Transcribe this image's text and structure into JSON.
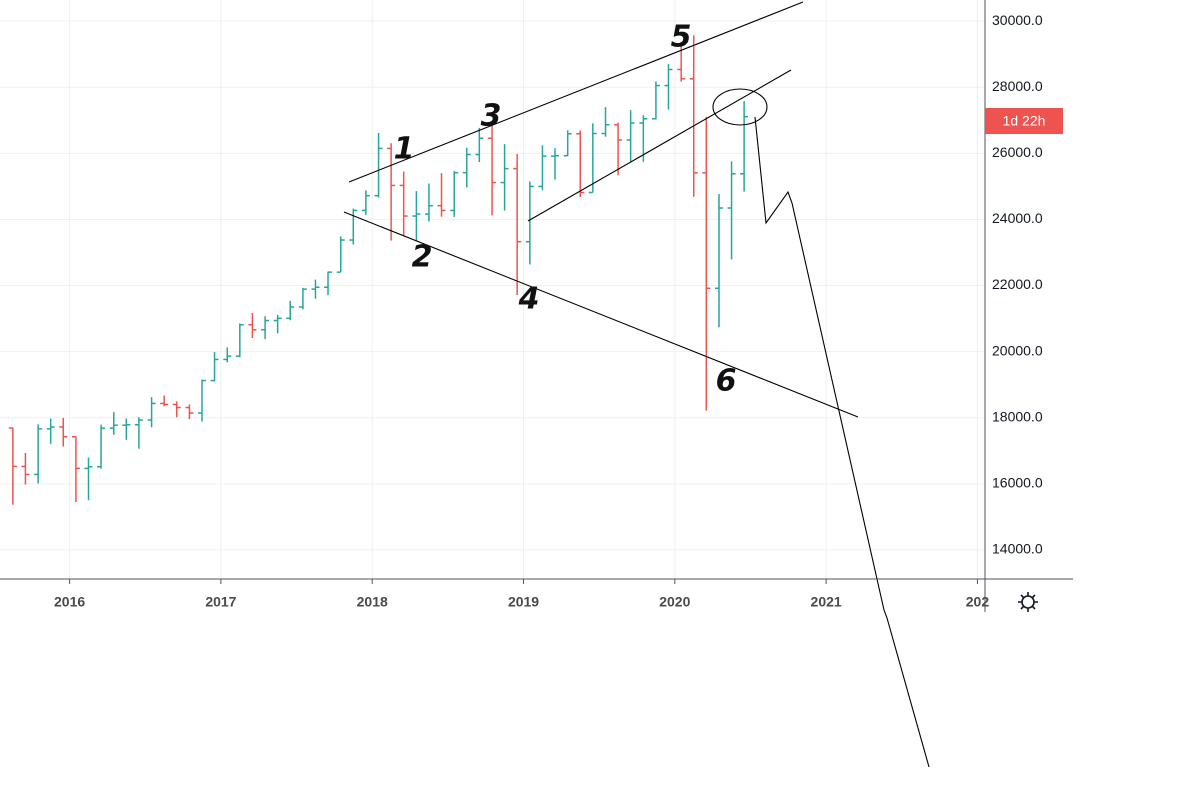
{
  "chart_data": {
    "type": "ohlc",
    "x": [
      2015.625,
      2015.708,
      2015.792,
      2015.875,
      2015.958,
      2016.042,
      2016.125,
      2016.208,
      2016.292,
      2016.375,
      2016.458,
      2016.542,
      2016.625,
      2016.708,
      2016.792,
      2016.875,
      2016.958,
      2017.042,
      2017.125,
      2017.208,
      2017.292,
      2017.375,
      2017.458,
      2017.542,
      2017.625,
      2017.708,
      2017.792,
      2017.875,
      2017.958,
      2018.042,
      2018.125,
      2018.208,
      2018.292,
      2018.375,
      2018.458,
      2018.542,
      2018.625,
      2018.708,
      2018.792,
      2018.875,
      2018.958,
      2019.042,
      2019.125,
      2019.208,
      2019.292,
      2019.375,
      2019.458,
      2019.542,
      2019.625,
      2019.708,
      2019.792,
      2019.875,
      2019.958,
      2020.042,
      2020.125,
      2020.208,
      2020.292,
      2020.375,
      2020.458
    ],
    "open": [
      17690,
      16528,
      16284,
      17663,
      17719,
      17425,
      16466,
      16517,
      17685,
      17774,
      17787,
      17930,
      18432,
      18401,
      18308,
      18142,
      19124,
      19763,
      19864,
      20812,
      20663,
      20941,
      21009,
      21350,
      21891,
      21948,
      22405,
      23377,
      24272,
      24719,
      26149,
      25029,
      24103,
      24163,
      24416,
      24271,
      25415,
      25965,
      26458,
      25116,
      25538,
      23327,
      24999,
      25916,
      25929,
      26593,
      24815,
      26600,
      26864,
      26403,
      26917,
      27046,
      28051,
      28538,
      28256,
      25409,
      21917,
      24346,
      25383
    ],
    "high": [
      17700,
      16933,
      17799,
      17977,
      17996,
      17425,
      16795,
      17790,
      18168,
      17974,
      18017,
      18622,
      18668,
      18495,
      18399,
      19152,
      19987,
      20125,
      20851,
      21169,
      21070,
      21113,
      21535,
      21929,
      22179,
      22420,
      23485,
      24328,
      24877,
      26617,
      26307,
      25450,
      24858,
      25087,
      25403,
      25463,
      26168,
      26770,
      26952,
      26278,
      25980,
      25150,
      26241,
      26156,
      26696,
      26689,
      26907,
      27399,
      26927,
      27306,
      27153,
      28175,
      28702,
      29374,
      29568,
      27102,
      24765,
      25758,
      27580
    ],
    "low": [
      15370,
      15979,
      16013,
      17210,
      17128,
      15450,
      15503,
      16459,
      17485,
      17331,
      17063,
      17711,
      18352,
      18017,
      17960,
      17884,
      19099,
      19678,
      19831,
      20412,
      20379,
      20553,
      20951,
      21279,
      21600,
      21710,
      22405,
      23242,
      24138,
      24660,
      23360,
      23509,
      23345,
      23939,
      24084,
      24077,
      24966,
      25737,
      24123,
      24268,
      21713,
      22638,
      24884,
      25208,
      25917,
      24680,
      24820,
      26503,
      25339,
      25743,
      25744,
      27026,
      27325,
      28170,
      24681,
      18214,
      20735,
      22790,
      24843
    ],
    "close": [
      16528,
      16284,
      17663,
      17719,
      17425,
      16466,
      16517,
      17685,
      17774,
      17787,
      17930,
      18432,
      18401,
      18308,
      18142,
      19124,
      19763,
      19864,
      20812,
      20663,
      20941,
      21009,
      21350,
      21891,
      21948,
      22405,
      23377,
      24272,
      24719,
      26149,
      25029,
      24103,
      24163,
      24416,
      24271,
      25415,
      25965,
      26458,
      25116,
      25538,
      23327,
      24999,
      25916,
      25929,
      26593,
      24815,
      26600,
      26864,
      26403,
      26917,
      27046,
      28051,
      28538,
      28256,
      25409,
      21917,
      24346,
      25383,
      27110
    ],
    "up_color": "#26a69a",
    "down_color": "#ef5350",
    "xlim": [
      2015.54,
      2022.05
    ],
    "xticks": [
      2016,
      2017,
      2018,
      2019,
      2020,
      2021,
      {
        "value": 2022,
        "label": "202"
      }
    ],
    "ylim": [
      13120,
      30640
    ],
    "yticks": [
      {
        "value": 14000,
        "label": "14000.0"
      },
      {
        "value": 16000,
        "label": "16000.0"
      },
      {
        "value": 18000,
        "label": "18000.0"
      },
      {
        "value": 20000,
        "label": "20000.0"
      },
      {
        "value": 22000,
        "label": "22000.0"
      },
      {
        "value": 24000,
        "label": "24000.0"
      },
      {
        "value": 26000,
        "label": "26000.0"
      },
      {
        "value": 28000,
        "label": "28000.0"
      },
      {
        "value": 30000,
        "label": "30000.0"
      }
    ],
    "grid": true,
    "countdown_label": "1d 22h",
    "annotations": [
      "1",
      "2",
      "3",
      "4",
      "5",
      "6"
    ]
  }
}
